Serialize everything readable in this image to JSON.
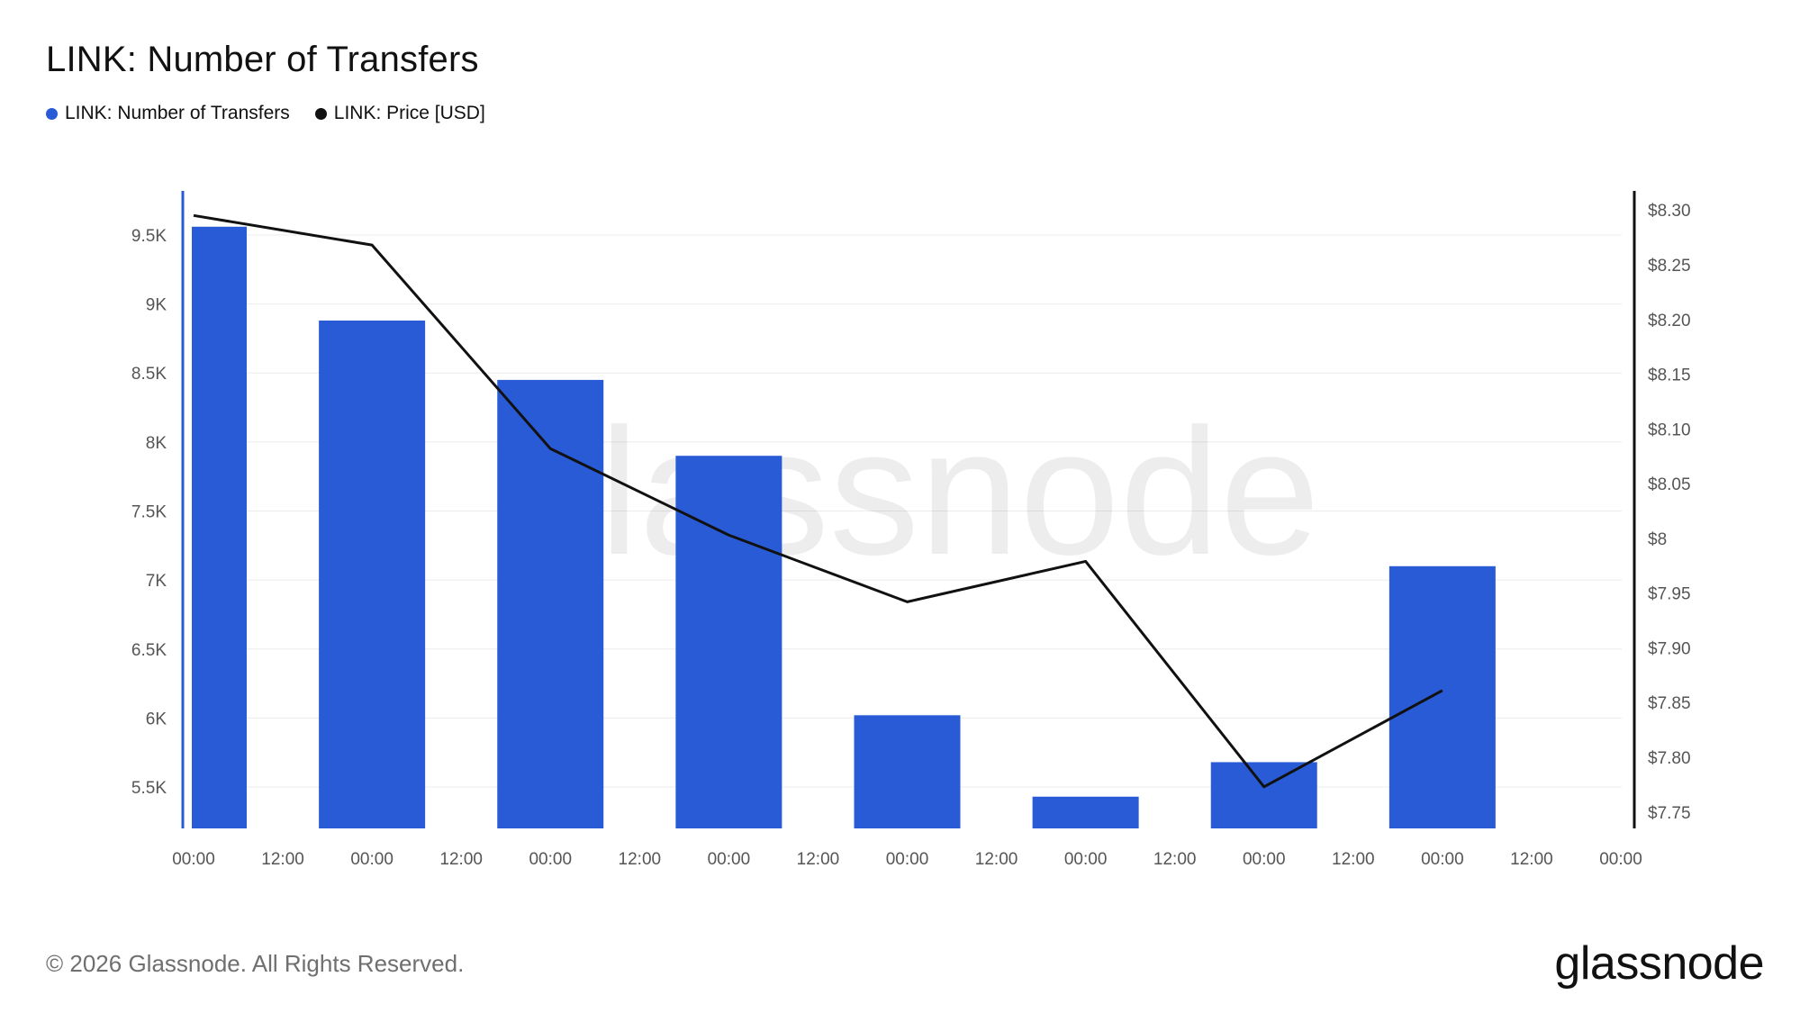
{
  "header": {
    "title": "LINK: Number of Transfers"
  },
  "legend": {
    "items": [
      {
        "label": "LINK: Number of Transfers",
        "color": "#2a5bd7"
      },
      {
        "label": "LINK: Price [USD]",
        "color": "#111111"
      }
    ]
  },
  "watermark": "glassnode",
  "footer": {
    "copyright": "© 2026 Glassnode. All Rights Reserved.",
    "logo": "glassnode"
  },
  "chart_data": {
    "type": "bar",
    "title": "LINK: Number of Transfers",
    "x_ticks": [
      "00:00",
      "12:00",
      "00:00",
      "12:00",
      "00:00",
      "12:00",
      "00:00",
      "12:00",
      "00:00",
      "12:00",
      "00:00",
      "12:00",
      "00:00",
      "12:00",
      "00:00",
      "12:00",
      "00:00"
    ],
    "y_left": {
      "ticks": [
        5500,
        6000,
        6500,
        7000,
        7500,
        8000,
        8500,
        9000,
        9500
      ],
      "tick_labels": [
        "5.5K",
        "6K",
        "6.5K",
        "7K",
        "7.5K",
        "8K",
        "8.5K",
        "9K",
        "9.5K"
      ],
      "range": [
        5200,
        9800
      ]
    },
    "y_right": {
      "ticks": [
        7.75,
        7.8,
        7.85,
        7.9,
        7.95,
        8.0,
        8.05,
        8.1,
        8.15,
        8.2,
        8.25,
        8.3
      ],
      "tick_labels": [
        "$7.75",
        "$7.80",
        "$7.85",
        "$7.90",
        "$7.95",
        "$8",
        "$8.05",
        "$8.10",
        "$8.15",
        "$8.20",
        "$8.25",
        "$8.30"
      ],
      "range": [
        7.735,
        8.315
      ]
    },
    "grid": true,
    "legend_position": "top-left",
    "series": [
      {
        "name": "LINK: Number of Transfers",
        "type": "bar",
        "axis": "left",
        "color": "#2a5bd7",
        "x": [
          0,
          1,
          2,
          3,
          4,
          5,
          6,
          7
        ],
        "values": [
          9560,
          8880,
          8450,
          7900,
          6020,
          5430,
          5680,
          7100
        ]
      },
      {
        "name": "LINK: Price [USD]",
        "type": "line",
        "axis": "right",
        "color": "#111111",
        "x": [
          0,
          1,
          2,
          3,
          4,
          5,
          6,
          7
        ],
        "values": [
          8.295,
          8.268,
          8.082,
          8.003,
          7.942,
          7.979,
          7.773,
          7.861
        ]
      }
    ]
  }
}
